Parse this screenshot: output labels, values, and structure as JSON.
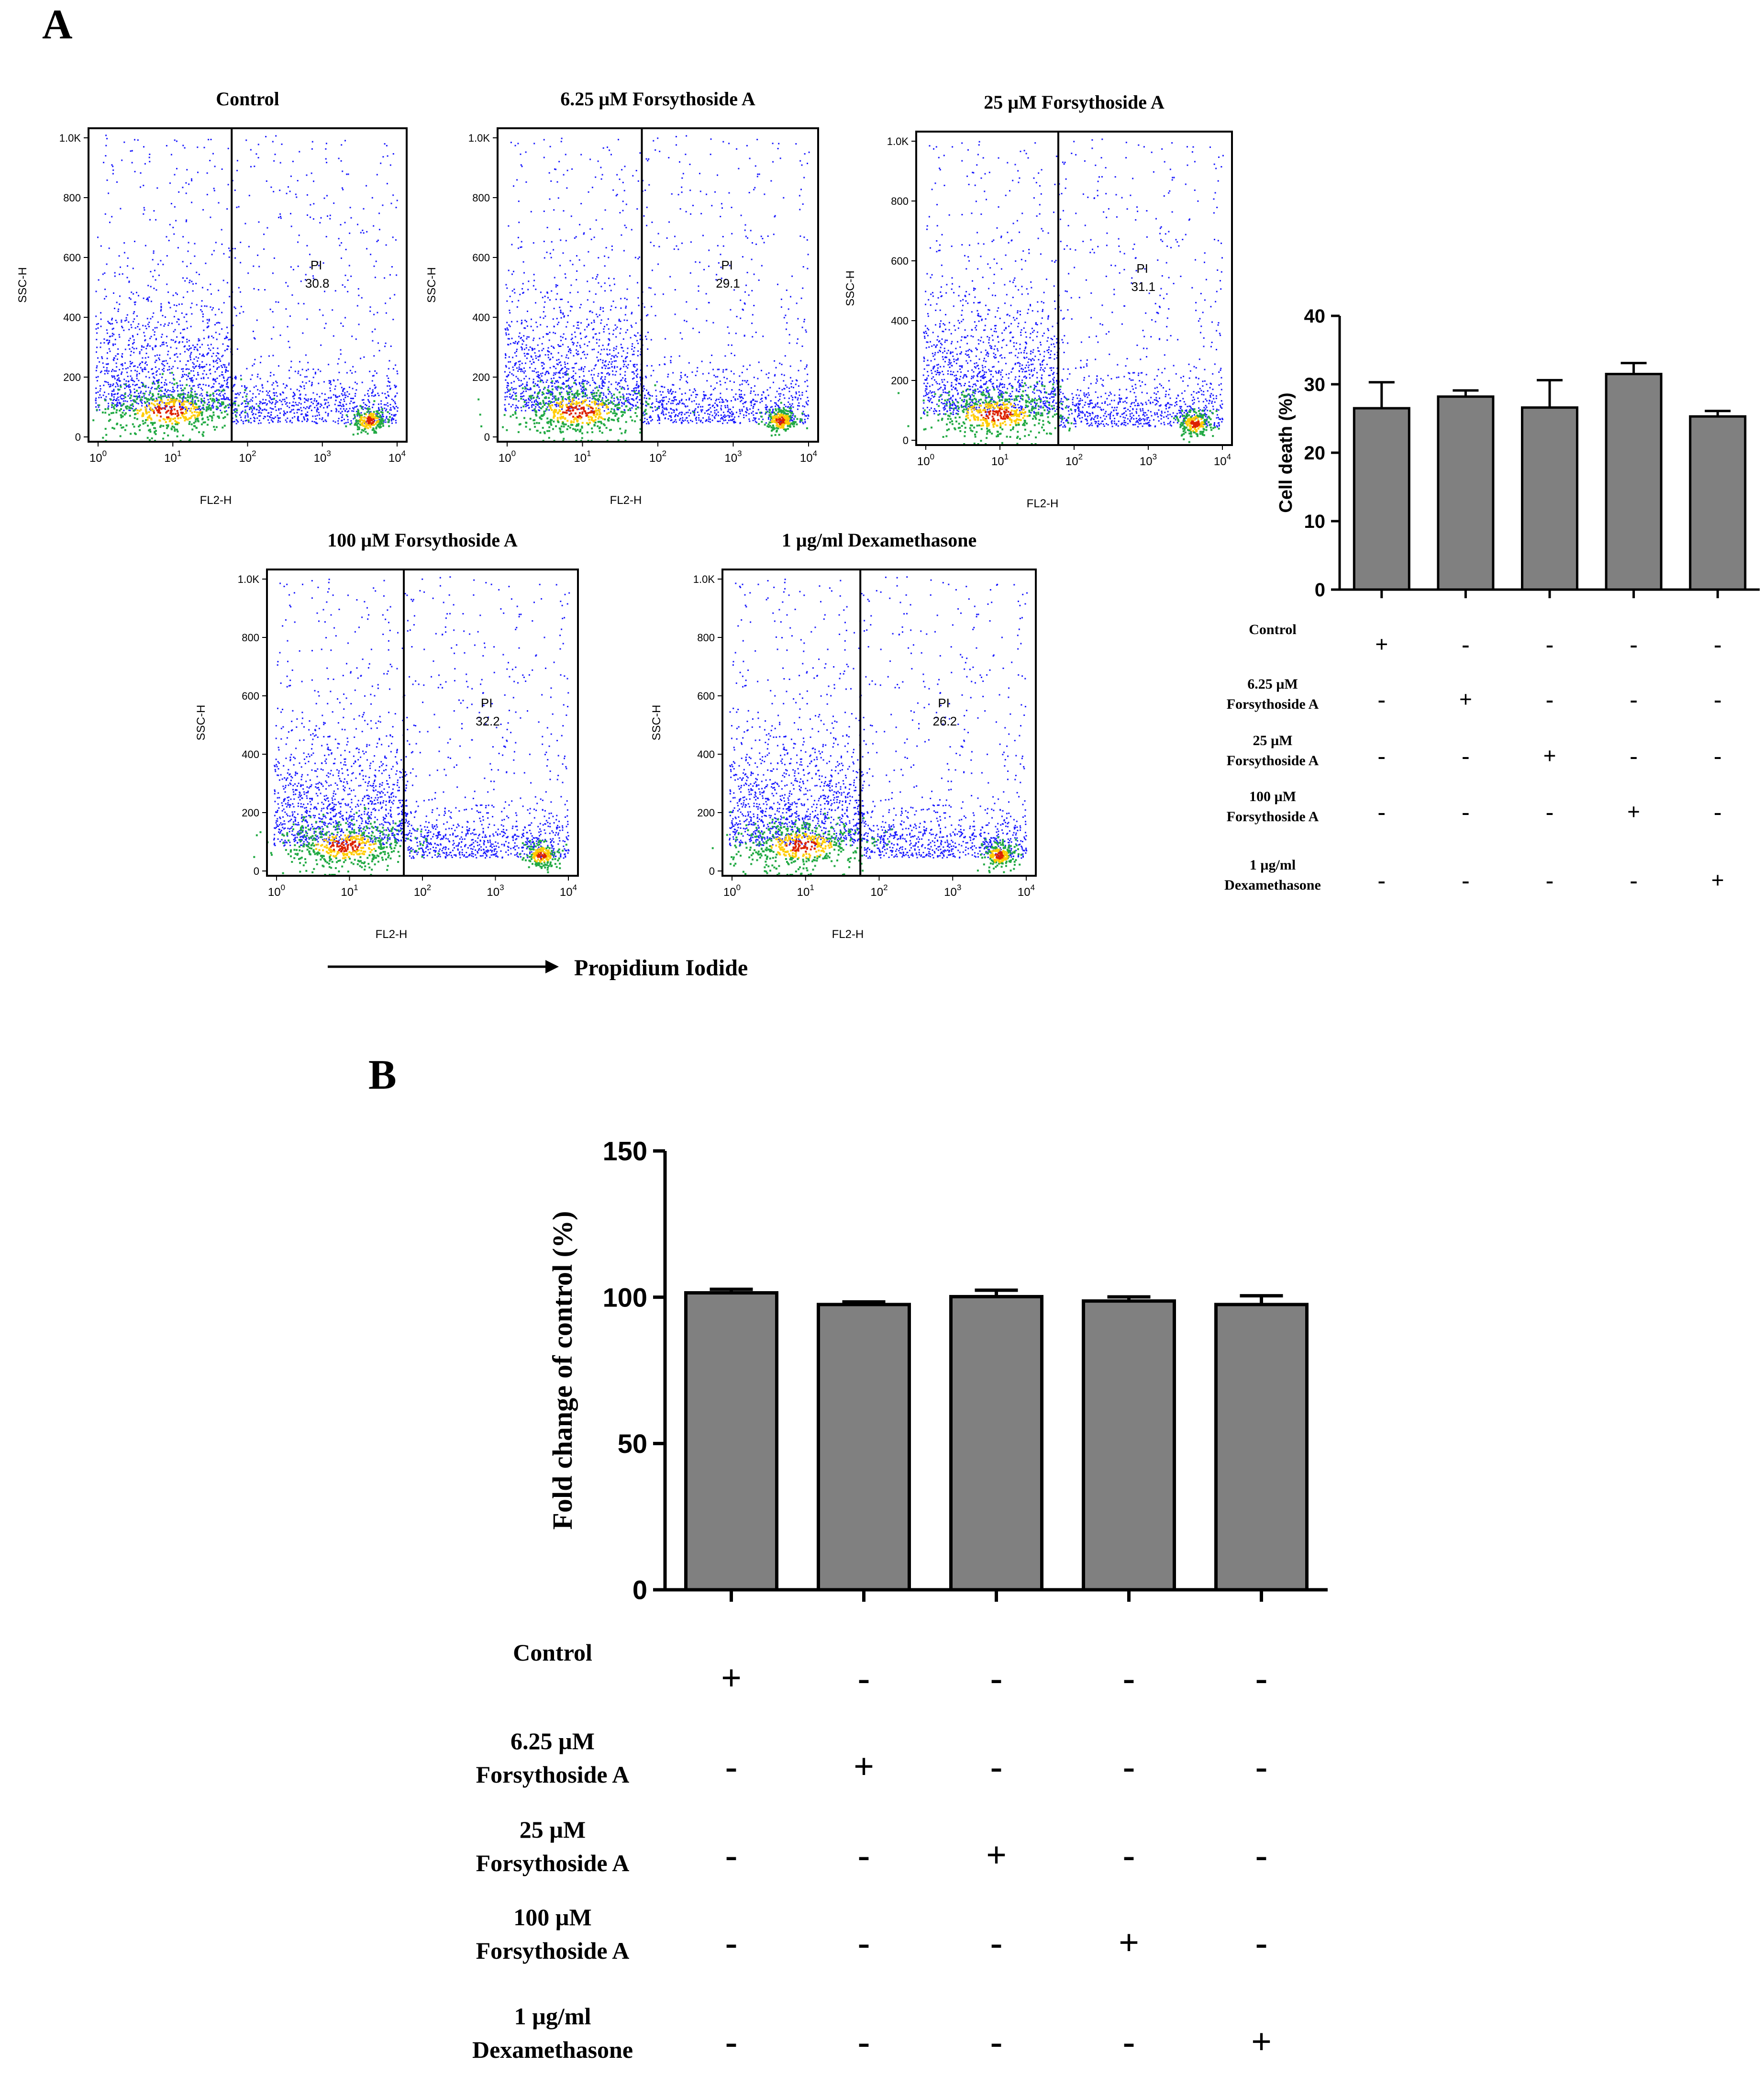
{
  "panel_labels": {
    "a": "A",
    "b": "B"
  },
  "flow": {
    "x_axis_label": "FL2-H",
    "y_axis_label": "SSC-H",
    "y_ticks": [
      "0",
      "200",
      "400",
      "600",
      "800",
      "1.0K"
    ],
    "x_ticks": [
      {
        "base": "10",
        "exp": "0"
      },
      {
        "base": "10",
        "exp": "1"
      },
      {
        "base": "10",
        "exp": "2"
      },
      {
        "base": "10",
        "exp": "3"
      },
      {
        "base": "10",
        "exp": "4"
      }
    ],
    "gate_label": "PI",
    "plots": [
      {
        "title": "Control",
        "gate_value": "30.8"
      },
      {
        "title": "6.25 µM Forsythoside A",
        "gate_value": "29.1"
      },
      {
        "title": "25 µM Forsythoside A",
        "gate_value": "31.1"
      },
      {
        "title": "100 µM Forsythoside A",
        "gate_value": "32.2"
      },
      {
        "title": "1 µg/ml Dexamethasone",
        "gate_value": "26.2"
      }
    ],
    "arrow_label": "Propidium Iodide",
    "colors": {
      "dots": "#1a1aff",
      "mid": "#22aa44",
      "high": "#ffcc00",
      "peak": "#dd2200"
    }
  },
  "chart_data": [
    {
      "type": "bar",
      "panel": "A",
      "title": "",
      "ylabel": "Cell death (%)",
      "xlabel": "",
      "ylim": [
        0,
        40
      ],
      "yticks": [
        0,
        10,
        20,
        30,
        40
      ],
      "categories": [
        "Control",
        "6.25 µM Forsythoside A",
        "25 µM Forsythoside A",
        "100 µM Forsythoside A",
        "1 µg/ml Dexamethasone"
      ],
      "values": [
        26.5,
        28.2,
        26.6,
        31.5,
        25.3
      ],
      "errors": [
        3.8,
        0.9,
        4.0,
        1.6,
        0.8
      ],
      "bar_color": "#808080",
      "treatment_rows": [
        {
          "label": [
            "Control"
          ],
          "marks": [
            "+",
            "-",
            "-",
            "-",
            "-"
          ]
        },
        {
          "label": [
            "6.25 µM",
            "Forsythoside A"
          ],
          "marks": [
            "-",
            "+",
            "-",
            "-",
            "-"
          ]
        },
        {
          "label": [
            "25 µM",
            "Forsythoside A"
          ],
          "marks": [
            "-",
            "-",
            "+",
            "-",
            "-"
          ]
        },
        {
          "label": [
            "100 µM",
            "Forsythoside A"
          ],
          "marks": [
            "-",
            "-",
            "-",
            "+",
            "-"
          ]
        },
        {
          "label": [
            "1 µg/ml",
            "Dexamethasone"
          ],
          "marks": [
            "-",
            "-",
            "-",
            "-",
            "+"
          ]
        }
      ]
    },
    {
      "type": "bar",
      "panel": "B",
      "title": "",
      "ylabel": "Fold change of control (%)",
      "xlabel": "",
      "ylim": [
        0,
        150
      ],
      "yticks": [
        0,
        50,
        100,
        150
      ],
      "categories": [
        "Control",
        "6.25 µM Forsythoside A",
        "25 µM Forsythoside A",
        "100 µM Forsythoside A",
        "1 µg/ml Dexamethasone"
      ],
      "values": [
        101.5,
        97.5,
        100.2,
        98.7,
        97.5
      ],
      "errors": [
        1.2,
        0.9,
        2.2,
        1.4,
        3.0
      ],
      "bar_color": "#808080",
      "treatment_rows": [
        {
          "label": [
            "Control"
          ],
          "marks": [
            "+",
            "-",
            "-",
            "-",
            "-"
          ]
        },
        {
          "label": [
            "6.25 µM",
            "Forsythoside A"
          ],
          "marks": [
            "-",
            "+",
            "-",
            "-",
            "-"
          ]
        },
        {
          "label": [
            "25 µM",
            "Forsythoside A"
          ],
          "marks": [
            "-",
            "-",
            "+",
            "-",
            "-"
          ]
        },
        {
          "label": [
            "100 µM",
            "Forsythoside A"
          ],
          "marks": [
            "-",
            "-",
            "-",
            "+",
            "-"
          ]
        },
        {
          "label": [
            "1 µg/ml",
            "Dexamethasone"
          ],
          "marks": [
            "-",
            "-",
            "-",
            "-",
            "+"
          ]
        }
      ]
    }
  ]
}
